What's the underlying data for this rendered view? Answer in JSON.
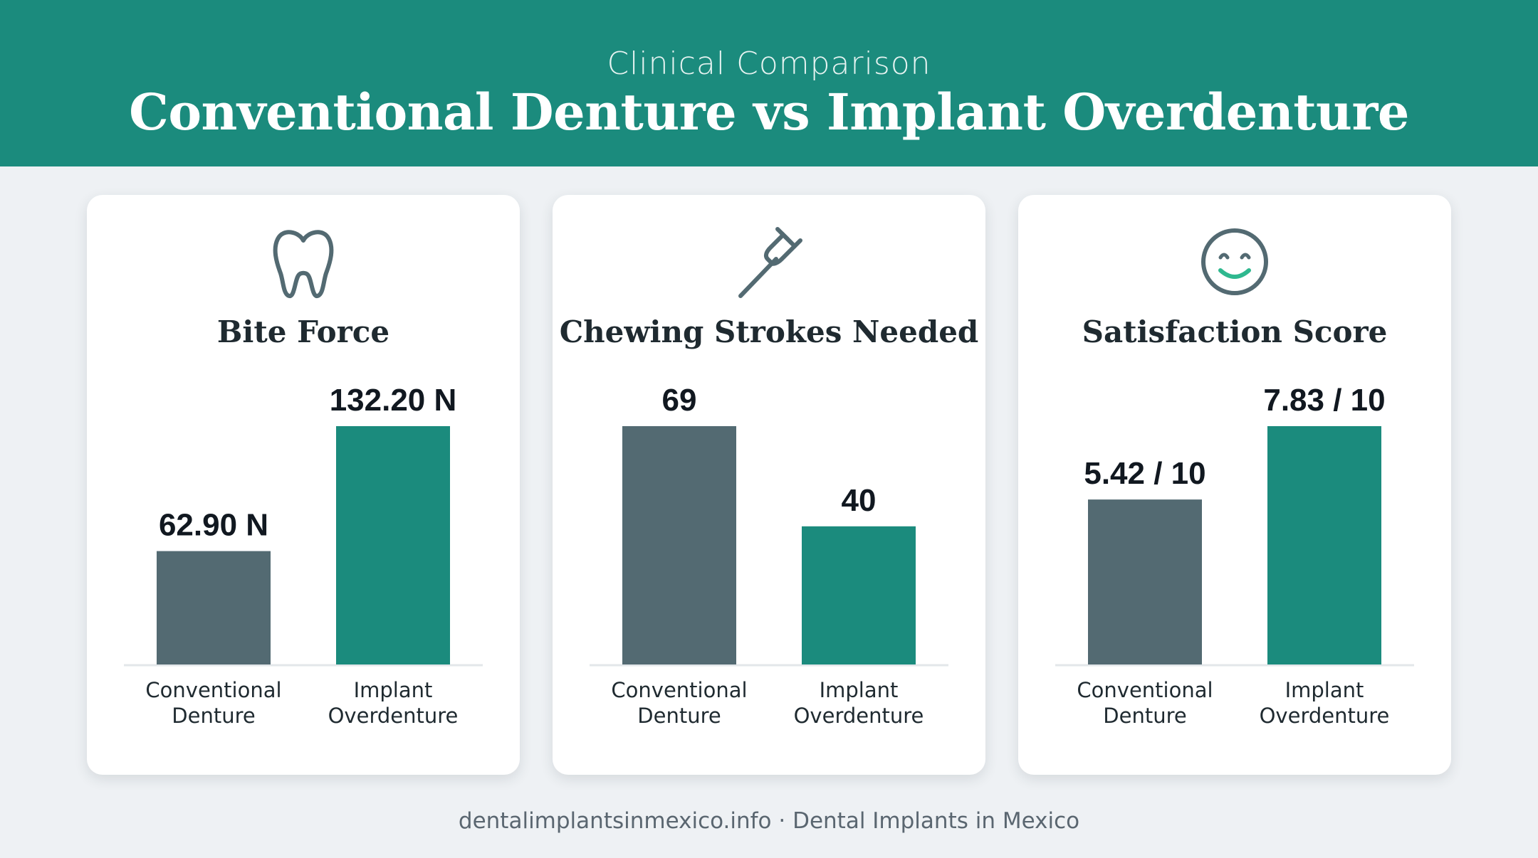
{
  "header": {
    "subtitle": "Clinical Comparison",
    "title": "Conventional Denture vs Implant Overdenture"
  },
  "colors": {
    "header": "#1b8b7d",
    "conventional": "#536a72",
    "implant": "#1b8b7d"
  },
  "cards": [
    {
      "icon": "tooth-icon",
      "title": "Bite Force"
    },
    {
      "icon": "fork-icon",
      "title": "Chewing Strokes Needed"
    },
    {
      "icon": "smile-icon",
      "title": "Satisfaction Score"
    }
  ],
  "chart_data": [
    {
      "type": "bar",
      "title": "Bite Force",
      "categories": [
        "Conventional Denture",
        "Implant Overdenture"
      ],
      "category_lines": [
        [
          "Conventional",
          "Denture"
        ],
        [
          "Implant",
          "Overdenture"
        ]
      ],
      "values": [
        62.9,
        132.2
      ],
      "data_labels": [
        "62.90 N",
        "132.20 N"
      ],
      "colors": [
        "#536a72",
        "#1b8b7d"
      ]
    },
    {
      "type": "bar",
      "title": "Chewing Strokes Needed",
      "categories": [
        "Conventional Denture",
        "Implant Overdenture"
      ],
      "category_lines": [
        [
          "Conventional",
          "Denture"
        ],
        [
          "Implant",
          "Overdenture"
        ]
      ],
      "values": [
        69,
        40
      ],
      "data_labels": [
        "69",
        "40"
      ],
      "colors": [
        "#536a72",
        "#1b8b7d"
      ]
    },
    {
      "type": "bar",
      "title": "Satisfaction Score",
      "categories": [
        "Conventional Denture",
        "Implant Overdenture"
      ],
      "category_lines": [
        [
          "Conventional",
          "Denture"
        ],
        [
          "Implant",
          "Overdenture"
        ]
      ],
      "values": [
        5.42,
        7.83
      ],
      "data_labels": [
        "5.42 / 10",
        "7.83 / 10"
      ],
      "colors": [
        "#536a72",
        "#1b8b7d"
      ]
    }
  ],
  "footer": {
    "text": "dentalimplantsinmexico.info · Dental Implants in Mexico"
  }
}
